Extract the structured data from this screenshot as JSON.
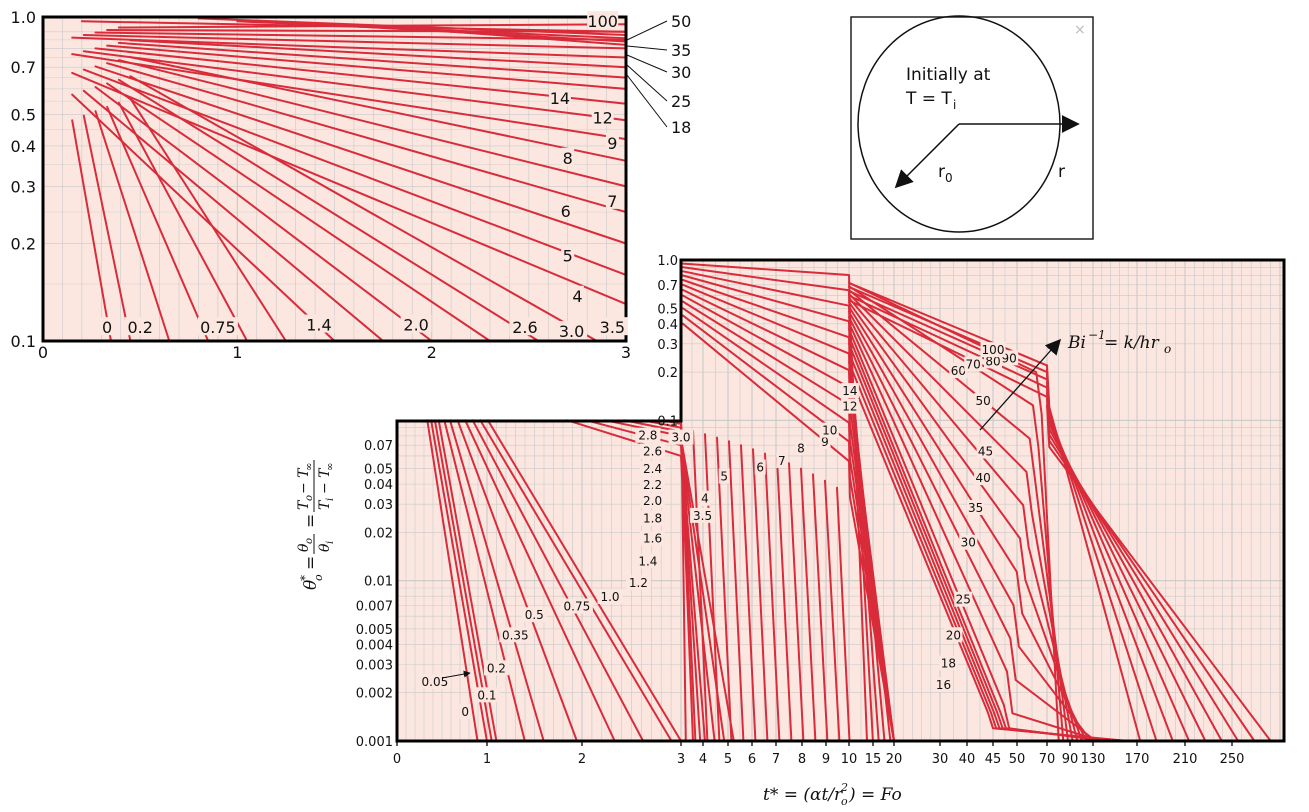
{
  "chart_data": [
    {
      "id": "main",
      "type": "line",
      "x_ticks": [
        "0",
        "1",
        "2",
        "3",
        "4",
        "5",
        "6",
        "7",
        "8",
        "9",
        "10",
        "15",
        "20",
        "30",
        "40",
        "45",
        "50",
        "70",
        "90",
        "130",
        "170",
        "210",
        "250"
      ],
      "y_ticks": [
        "1.0",
        "0.7",
        "0.5",
        "0.4",
        "0.3",
        "0.2",
        "0.1",
        "0.07",
        "0.05",
        "0.04",
        "0.03",
        "0.02",
        "0.01",
        "0.007",
        "0.005",
        "0.004",
        "0.003",
        "0.002",
        "0.001"
      ],
      "ylim": [
        0.001,
        1.0
      ],
      "y_scale": "log",
      "grid": true,
      "curve_labels": [
        "0",
        "0.05",
        "0.1",
        "0.2",
        "0.35",
        "0.5",
        "0.75",
        "1.0",
        "1.2",
        "1.4",
        "1.6",
        "1.8",
        "2.0",
        "2.2",
        "2.4",
        "2.6",
        "2.8",
        "3.0",
        "3.5",
        "4",
        "5",
        "6",
        "7",
        "8",
        "9",
        "10",
        "12",
        "14",
        "16",
        "18",
        "20",
        "25",
        "30",
        "35",
        "40",
        "45",
        "50",
        "60",
        "70",
        "80",
        "90",
        "100"
      ],
      "bi_annotation": {
        "lhs": "Bi",
        "sup": "−1",
        "rhs": " = k/hr",
        "sub": "o"
      }
    },
    {
      "id": "inset",
      "type": "line",
      "x_ticks": [
        "0",
        "1",
        "2",
        "3"
      ],
      "xlim": [
        0,
        3
      ],
      "y_ticks": [
        "1.0",
        "0.7",
        "0.5",
        "0.4",
        "0.3",
        "0.2",
        "0.1"
      ],
      "ylim": [
        0.1,
        1.0
      ],
      "y_scale": "log",
      "grid": true,
      "inside_labels": [
        "0",
        "0.2",
        "0.75",
        "1.4",
        "2.0",
        "2.6",
        "3.0",
        "3.5",
        "4",
        "5",
        "6",
        "7",
        "8",
        "9",
        "12",
        "14",
        "100"
      ],
      "right_labels": [
        "50",
        "35",
        "30",
        "25",
        "18"
      ]
    }
  ],
  "schematic": {
    "line1": "Initially at",
    "line2_prefix": "T = T",
    "line2_sub": "i",
    "r0": "r",
    "r0_sub": "0",
    "r": "r",
    "close": "×"
  }
}
